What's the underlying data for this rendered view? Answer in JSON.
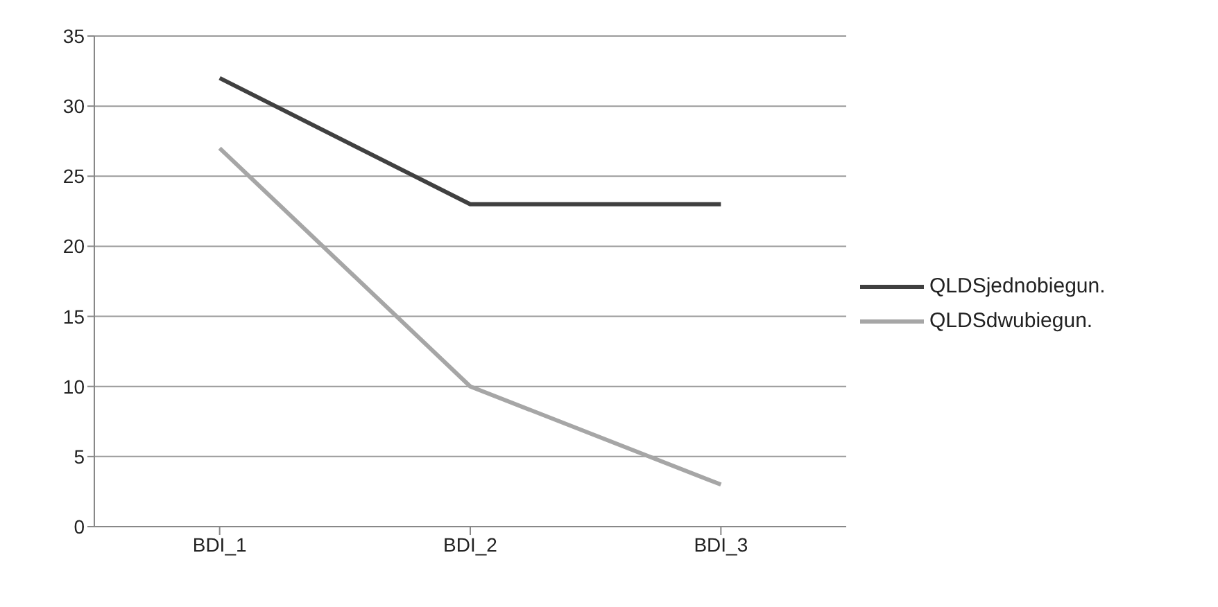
{
  "chart_data": {
    "type": "line",
    "categories": [
      "BDI_1",
      "BDI_2",
      "BDI_3"
    ],
    "series": [
      {
        "name": "QLDSjednobiegun.",
        "color": "#404040",
        "values": [
          32,
          23,
          23
        ]
      },
      {
        "name": "QLDSdwubiegun.",
        "color": "#a6a6a6",
        "values": [
          27,
          10,
          3
        ]
      }
    ],
    "ylim": [
      0,
      35
    ],
    "yticks": [
      0,
      5,
      10,
      15,
      20,
      25,
      30,
      35
    ],
    "grid": "y",
    "legend": "right",
    "marker": "none",
    "line_style": "solid"
  }
}
